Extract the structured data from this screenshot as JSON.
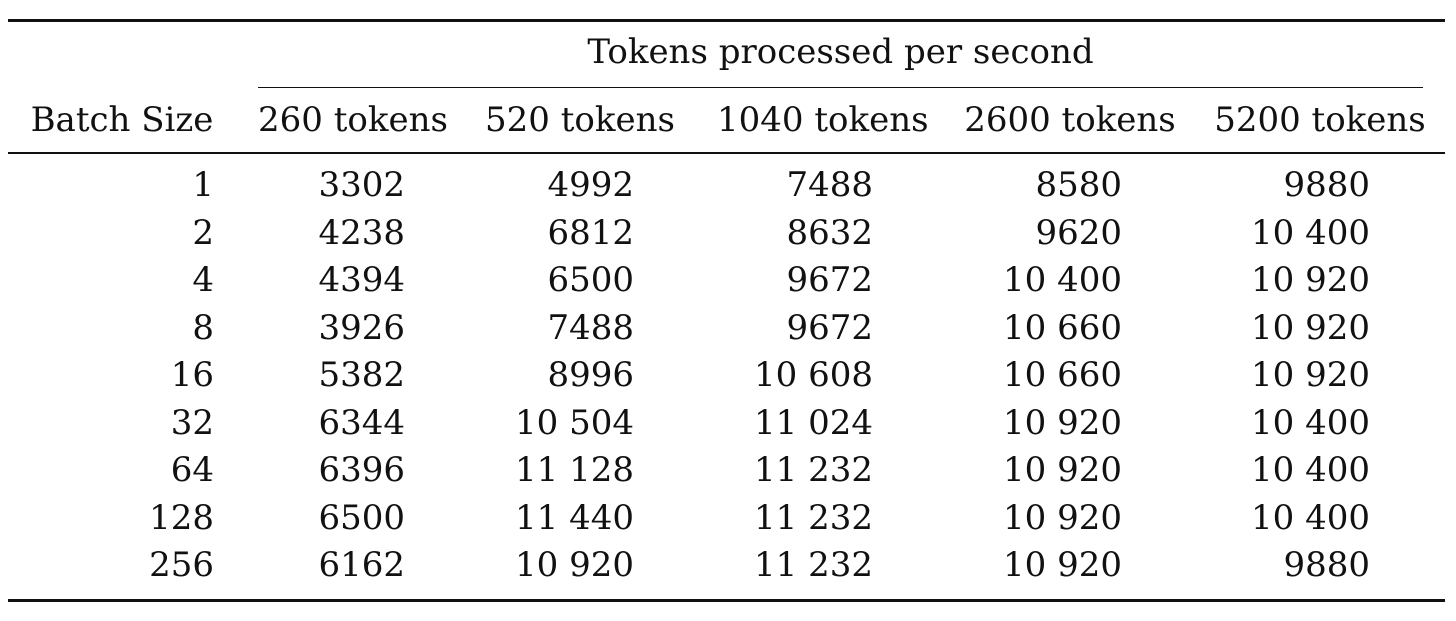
{
  "table": {
    "group_header": "Tokens processed per second",
    "row_header": "Batch Size",
    "columns": [
      "260 tokens",
      "520 tokens",
      "1040 tokens",
      "2600 tokens",
      "5200 tokens"
    ],
    "rows": [
      {
        "batch": "1",
        "values": [
          "3302",
          "4992",
          "7488",
          "8580",
          "9880"
        ]
      },
      {
        "batch": "2",
        "values": [
          "4238",
          "6812",
          "8632",
          "9620",
          "10 400"
        ]
      },
      {
        "batch": "4",
        "values": [
          "4394",
          "6500",
          "9672",
          "10 400",
          "10 920"
        ]
      },
      {
        "batch": "8",
        "values": [
          "3926",
          "7488",
          "9672",
          "10 660",
          "10 920"
        ]
      },
      {
        "batch": "16",
        "values": [
          "5382",
          "8996",
          "10 608",
          "10 660",
          "10 920"
        ]
      },
      {
        "batch": "32",
        "values": [
          "6344",
          "10 504",
          "11 024",
          "10 920",
          "10 400"
        ]
      },
      {
        "batch": "64",
        "values": [
          "6396",
          "11 128",
          "11 232",
          "10 920",
          "10 400"
        ]
      },
      {
        "batch": "128",
        "values": [
          "6500",
          "11 440",
          "11 232",
          "10 920",
          "10 400"
        ]
      },
      {
        "batch": "256",
        "values": [
          "6162",
          "10 920",
          "11 232",
          "10 920",
          "9880"
        ]
      }
    ]
  }
}
